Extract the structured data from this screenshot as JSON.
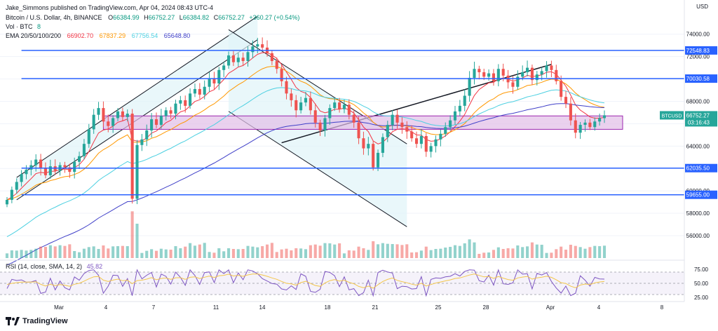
{
  "header": {
    "publisher": "Jake_Simmons published on TradingView.com, Apr 04, 2024 08:43 UTC-4",
    "symbol": "Bitcoin / U.S. Dollar, 4h, BINANCE",
    "ohlc": {
      "o_label": "O",
      "o": "66384.99",
      "h_label": "H",
      "h": "66752.27",
      "l_label": "L",
      "l": "66384.82",
      "c_label": "C",
      "c": "66752.27",
      "change": "+360.27 (+0.54%)"
    },
    "vol_label": "Vol · BTC",
    "vol_value": "8",
    "ema_label": "EMA 20/50/100/200",
    "ema_values": [
      "66902.70",
      "67837.29",
      "67756.54",
      "65648.80"
    ]
  },
  "colors": {
    "up": "#26a69a",
    "down": "#ef5350",
    "ema20": "#f23645",
    "ema50": "#ff9800",
    "ema100": "#4dd0e1",
    "ema200": "#3f3fc8",
    "level_line": "#2962ff",
    "zone_fill": "#e1bee7",
    "zone_border": "#9c27b0",
    "channel_fill": "#e0f4f8",
    "rsi_line": "#7e57c2",
    "rsi_ma": "#f3c64b"
  },
  "price_axis": {
    "ticks": [
      "74000.00",
      "72000.00",
      "70000.00",
      "68000.00",
      "66000.00",
      "64000.00",
      "60000.00",
      "58000.00",
      "56000.00"
    ],
    "levels": [
      "72548.83",
      "70030.58",
      "62035.50",
      "59655.00"
    ],
    "current_symbol": "BTCUSD",
    "current_price": "66752.27",
    "countdown": "03:16:43",
    "currency": "USD"
  },
  "time_axis": {
    "labels": [
      "Mar",
      "4",
      "7",
      "11",
      "14",
      "18",
      "21",
      "25",
      "28",
      "Apr",
      "4",
      "8"
    ]
  },
  "rsi": {
    "label": "RSI (14, close, SMA, 14, 2)",
    "value": "45.82",
    "ticks": [
      "75.00",
      "50.00",
      "25.00"
    ]
  },
  "footer": {
    "brand": "TradingView"
  },
  "chart_data": {
    "type": "candlestick",
    "title": "Bitcoin / U.S. Dollar, 4h, BINANCE",
    "ylim": [
      54000,
      75800
    ],
    "levels": [
      72548.83,
      70030.58,
      62035.5,
      59655.0
    ],
    "zone": [
      65500,
      66700
    ],
    "last_close": 66752.27,
    "closes": [
      59200,
      60100,
      60800,
      61500,
      61900,
      62300,
      62800,
      62000,
      61400,
      62200,
      61800,
      62300,
      62100,
      61700,
      62600,
      63100,
      64200,
      65500,
      66800,
      67400,
      66200,
      65800,
      66500,
      67100,
      66600,
      66900,
      59300,
      64100,
      64600,
      65400,
      66400,
      65900,
      66700,
      67200,
      66900,
      67800,
      68100,
      67600,
      68700,
      69100,
      68600,
      69300,
      70000,
      69600,
      70800,
      71200,
      72100,
      71500,
      71900,
      71600,
      72400,
      72900,
      73100,
      72800,
      72300,
      71600,
      70900,
      69800,
      68700,
      68100,
      67200,
      67900,
      68300,
      67200,
      66100,
      65400,
      66500,
      67400,
      67900,
      67300,
      67700,
      66800,
      66100,
      64700,
      63800,
      64200,
      62100,
      63400,
      64800,
      65900,
      66800,
      66100,
      65700,
      65300,
      64700,
      64200,
      64900,
      63500,
      64000,
      64600,
      65100,
      65700,
      66300,
      67100,
      67600,
      68500,
      70100,
      70900,
      70600,
      70200,
      70500,
      69800,
      70900,
      70300,
      69700,
      69300,
      70200,
      70600,
      71000,
      69900,
      70400,
      70700,
      71200,
      70800,
      69800,
      68400,
      67800,
      66300,
      65200,
      65900,
      66100,
      65700,
      66200,
      66500,
      66752
    ]
  }
}
